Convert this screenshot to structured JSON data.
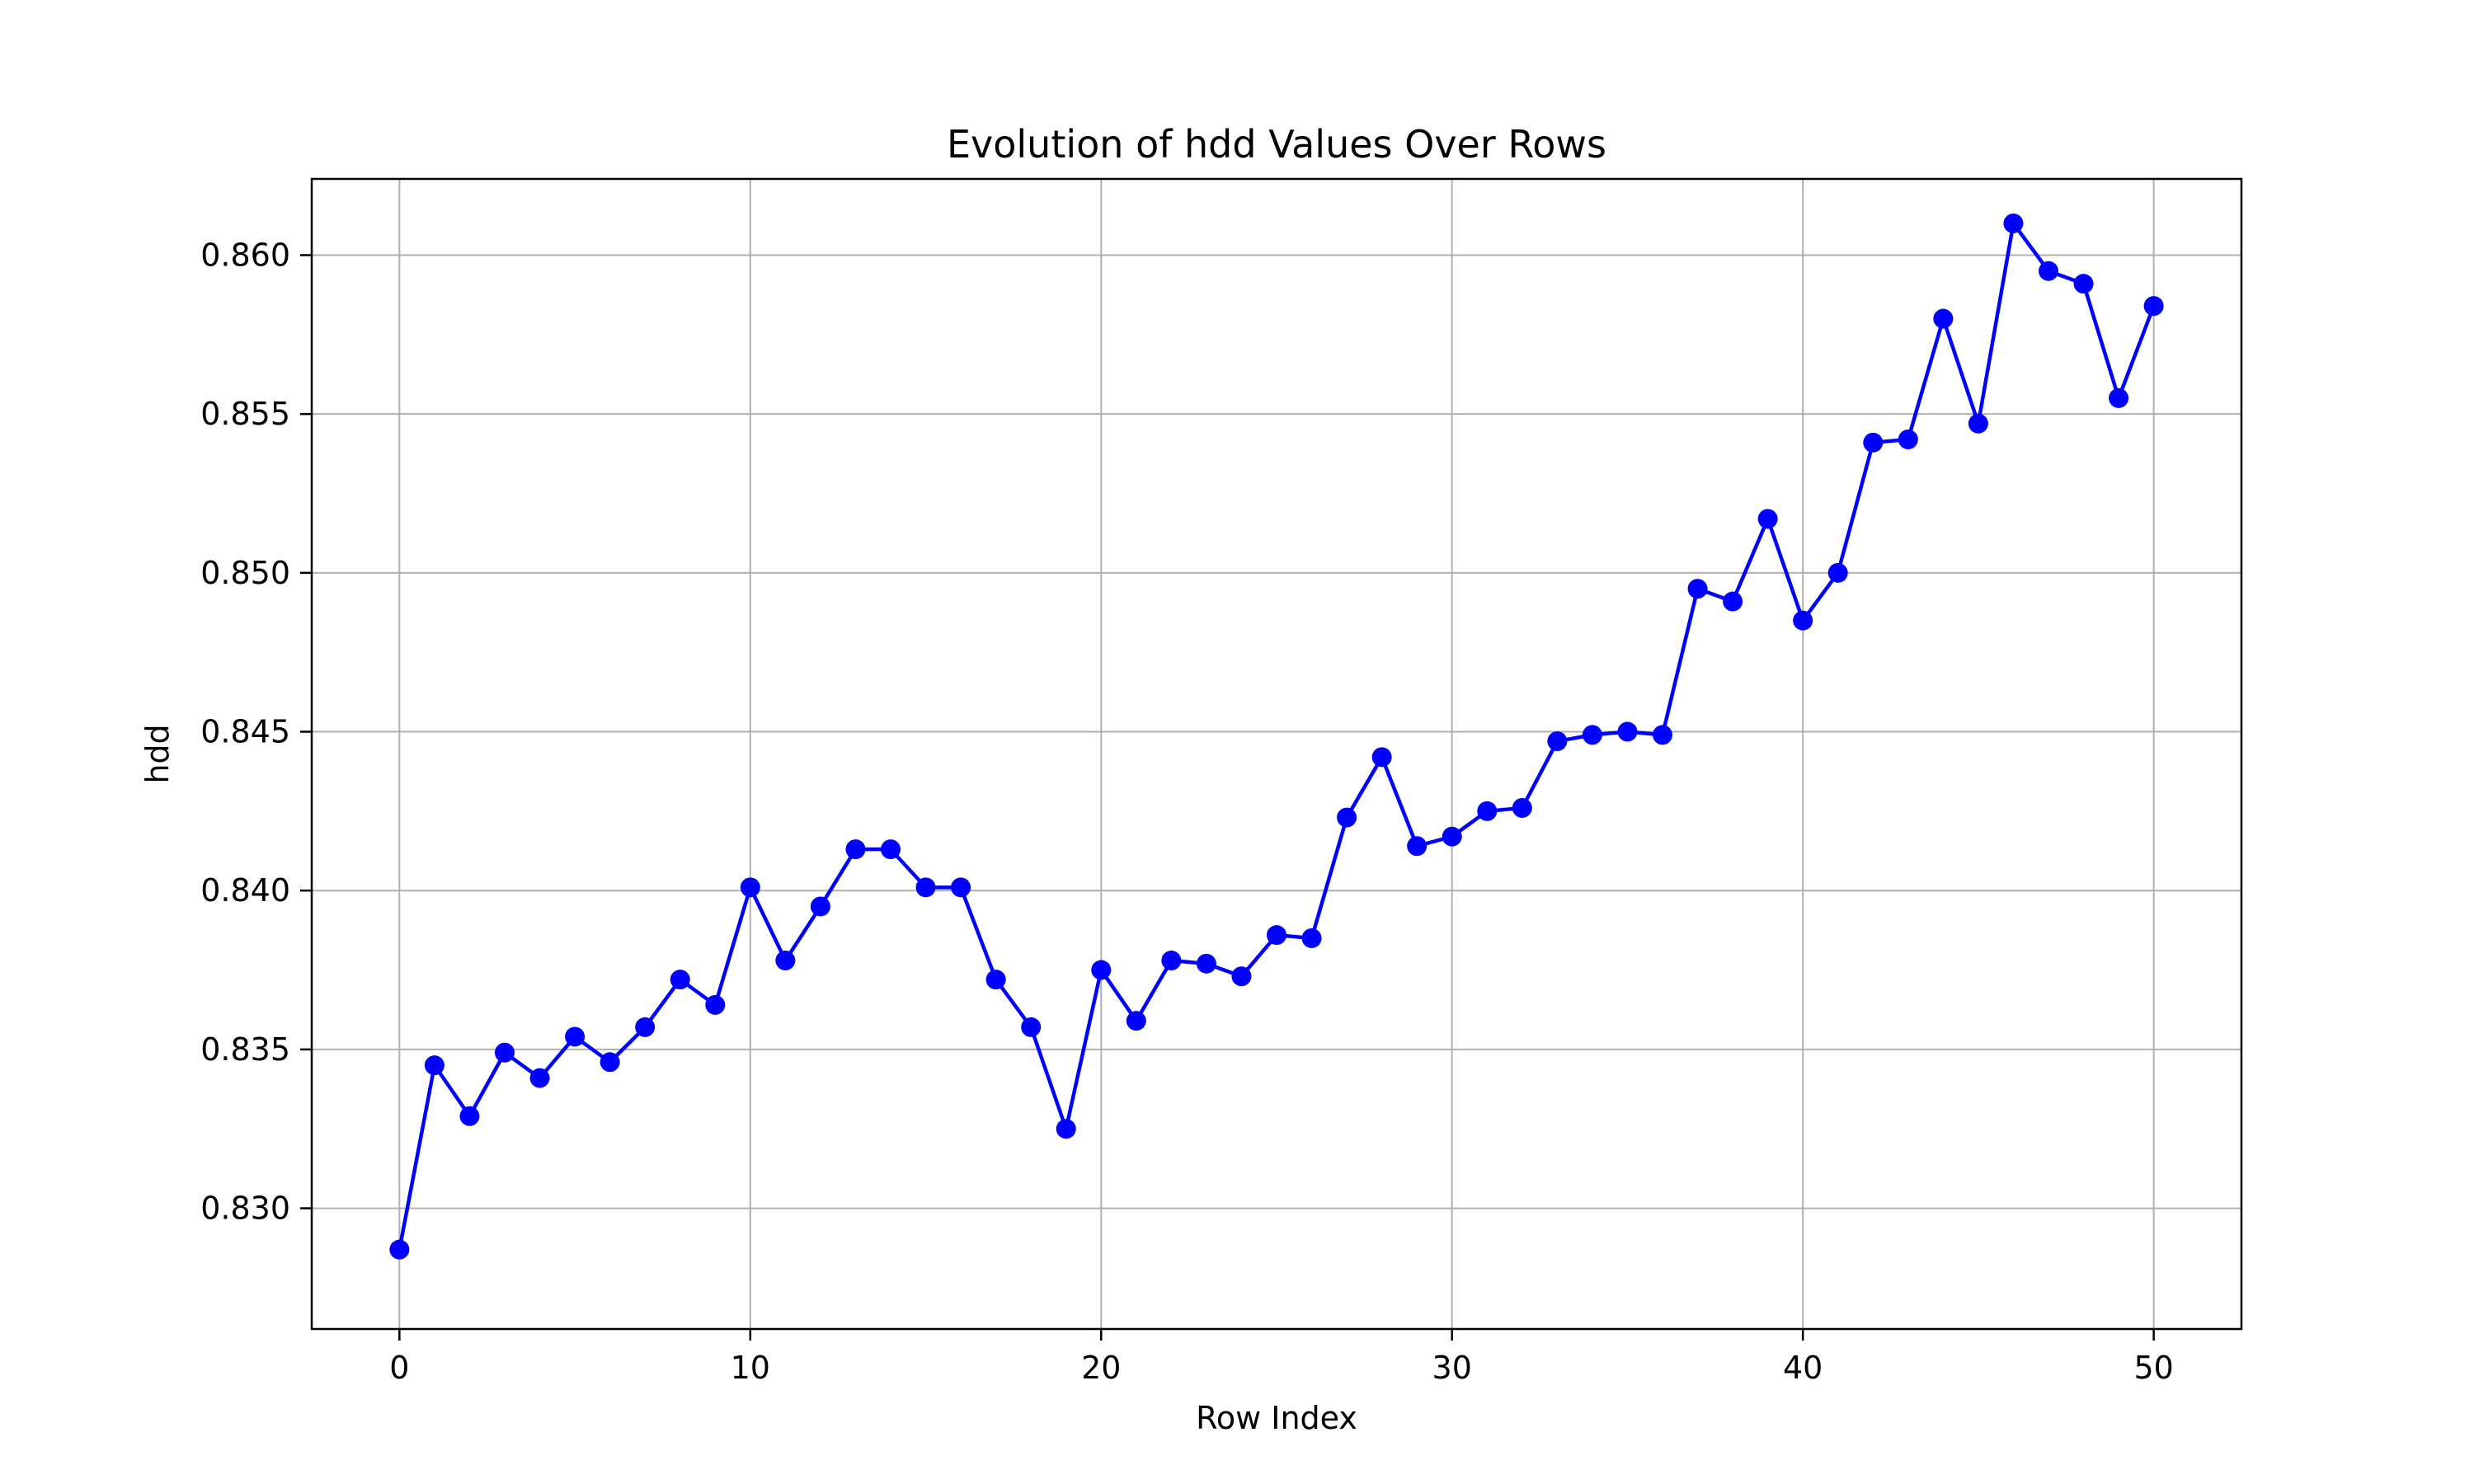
{
  "chart_data": {
    "type": "line",
    "title": "Evolution of hdd Values Over Rows",
    "xlabel": "Row Index",
    "ylabel": "hdd",
    "xlim": [
      -2.5,
      52.5
    ],
    "ylim": [
      0.8262,
      0.8624
    ],
    "xticks": [
      0,
      10,
      20,
      30,
      40,
      50
    ],
    "xtick_labels": [
      "0",
      "10",
      "20",
      "30",
      "40",
      "50"
    ],
    "yticks": [
      0.83,
      0.835,
      0.84,
      0.845,
      0.85,
      0.855,
      0.86
    ],
    "ytick_labels": [
      "0.830",
      "0.835",
      "0.840",
      "0.845",
      "0.850",
      "0.855",
      "0.860"
    ],
    "grid": true,
    "marker": "circle",
    "series_color": "#0000ff",
    "grid_color": "#b0b0b0",
    "series": [
      {
        "x": [
          0,
          1,
          2,
          3,
          4,
          5,
          6,
          7,
          8,
          9,
          10,
          11,
          12,
          13,
          14,
          15,
          16,
          17,
          18,
          19,
          20,
          21,
          22,
          23,
          24,
          25,
          26,
          27,
          28,
          29,
          30,
          31,
          32,
          33,
          34,
          35,
          36,
          37,
          38,
          39,
          40,
          41,
          42,
          43,
          44,
          45,
          46,
          47,
          48,
          49,
          50
        ],
        "values": [
          0.8287,
          0.8345,
          0.8329,
          0.8349,
          0.8341,
          0.8354,
          0.8346,
          0.8357,
          0.8372,
          0.8364,
          0.8401,
          0.8378,
          0.8395,
          0.8413,
          0.8413,
          0.8401,
          0.8401,
          0.8372,
          0.8357,
          0.8325,
          0.8375,
          0.8359,
          0.8378,
          0.8377,
          0.8373,
          0.8386,
          0.8385,
          0.8423,
          0.8442,
          0.8414,
          0.8417,
          0.8425,
          0.8426,
          0.8447,
          0.8449,
          0.845,
          0.8449,
          0.8495,
          0.8491,
          0.8517,
          0.8485,
          0.85,
          0.8541,
          0.8542,
          0.858,
          0.8547,
          0.861,
          0.8595,
          0.8591,
          0.8555,
          0.8584
        ]
      }
    ]
  }
}
